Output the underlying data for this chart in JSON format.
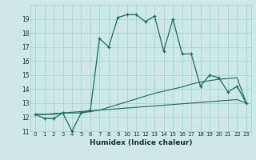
{
  "xlabel": "Humidex (Indice chaleur)",
  "x": [
    0,
    1,
    2,
    3,
    4,
    5,
    6,
    7,
    8,
    9,
    10,
    11,
    12,
    13,
    14,
    15,
    16,
    17,
    18,
    19,
    20,
    21,
    22,
    23
  ],
  "line1": [
    12.2,
    11.9,
    11.9,
    12.3,
    11.0,
    12.3,
    12.5,
    17.6,
    17.0,
    19.1,
    19.3,
    19.3,
    18.8,
    19.2,
    16.7,
    19.0,
    16.5,
    16.5,
    14.2,
    15.0,
    14.8,
    13.8,
    14.2,
    13.0
  ],
  "line2": [
    12.2,
    12.2,
    12.2,
    12.3,
    12.3,
    12.3,
    12.4,
    12.5,
    12.7,
    12.9,
    13.1,
    13.3,
    13.5,
    13.7,
    13.85,
    14.0,
    14.15,
    14.35,
    14.5,
    14.6,
    14.7,
    14.75,
    14.8,
    13.0
  ],
  "line3": [
    12.2,
    12.2,
    12.25,
    12.3,
    12.35,
    12.4,
    12.45,
    12.5,
    12.55,
    12.6,
    12.65,
    12.7,
    12.75,
    12.8,
    12.85,
    12.9,
    12.95,
    13.0,
    13.05,
    13.1,
    13.15,
    13.2,
    13.25,
    13.0
  ],
  "line_color": "#1a6b5a",
  "bg_color": "#cde8e5",
  "grid_color": "#9ecfcc",
  "ylim": [
    11,
    20
  ],
  "ylim_max": 19.5,
  "yticks": [
    11,
    12,
    13,
    14,
    15,
    16,
    17,
    18,
    19
  ],
  "xticks": [
    0,
    1,
    2,
    3,
    4,
    5,
    6,
    7,
    8,
    9,
    10,
    11,
    12,
    13,
    14,
    15,
    16,
    17,
    18,
    19,
    20,
    21,
    22,
    23
  ]
}
